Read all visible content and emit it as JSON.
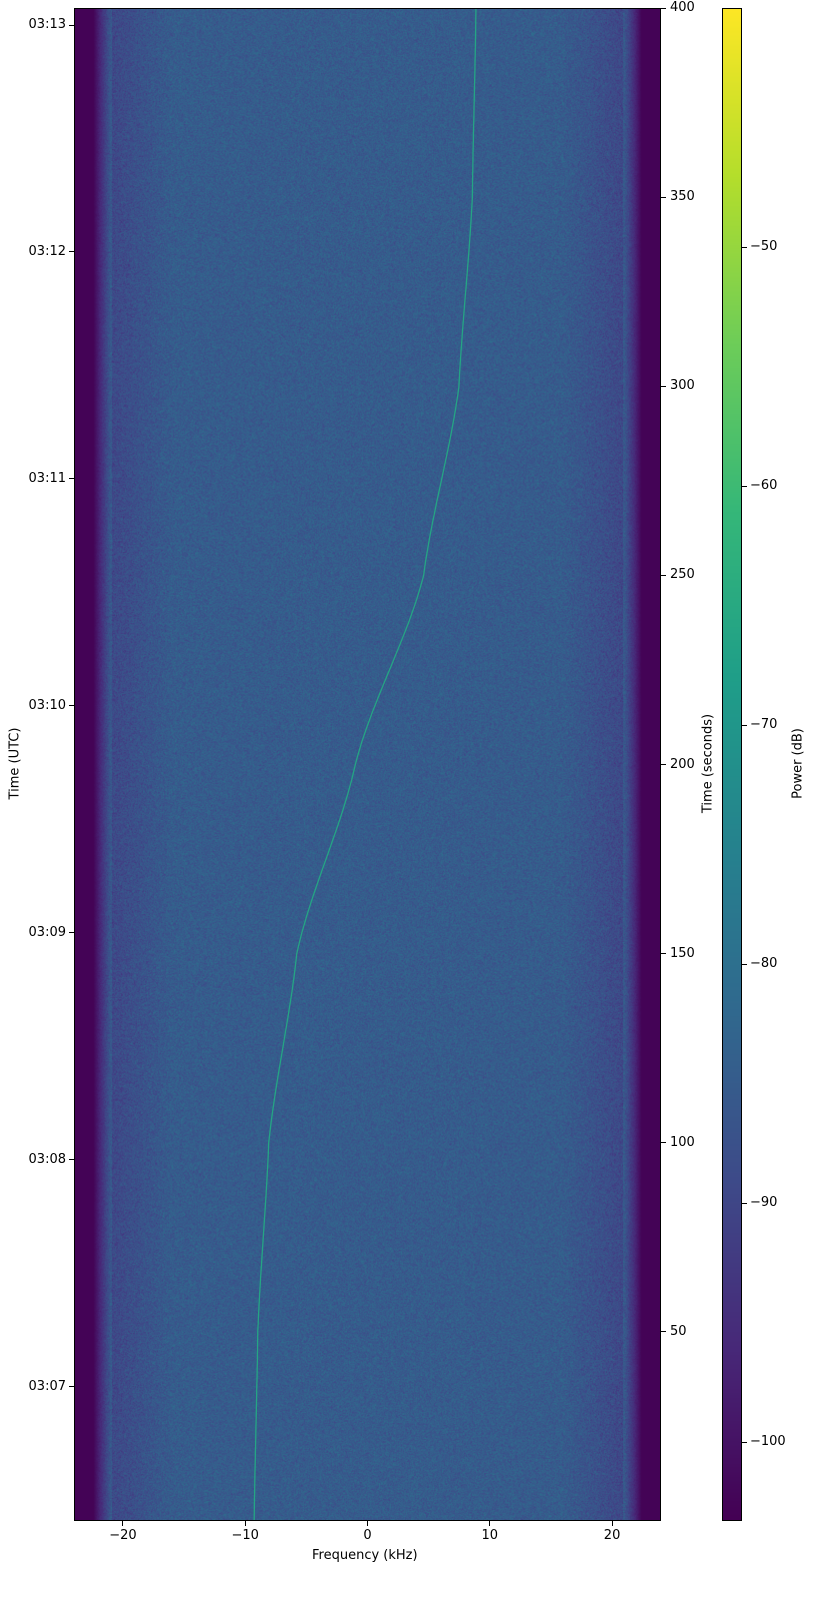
{
  "chart_data": {
    "type": "heatmap",
    "title": "",
    "xlabel": "Frequency (kHz)",
    "ylabel_left": "Time (UTC)",
    "ylabel_right": "Time (seconds)",
    "colorbar_label": "Power (dB)",
    "colormap": "viridis",
    "xlim": [
      -24,
      24
    ],
    "ylim_seconds": [
      0,
      400
    ],
    "clim": [
      -103.3,
      -40
    ],
    "x_ticks": [
      {
        "v": -20,
        "label": "−20"
      },
      {
        "v": -10,
        "label": "−10"
      },
      {
        "v": 0,
        "label": "0"
      },
      {
        "v": 10,
        "label": "10"
      },
      {
        "v": 20,
        "label": "20"
      }
    ],
    "y_right_ticks": [
      {
        "v": 50,
        "label": "50"
      },
      {
        "v": 100,
        "label": "100"
      },
      {
        "v": 150,
        "label": "150"
      },
      {
        "v": 200,
        "label": "200"
      },
      {
        "v": 250,
        "label": "250"
      },
      {
        "v": 300,
        "label": "300"
      },
      {
        "v": 350,
        "label": "350"
      },
      {
        "v": 400,
        "label": "400"
      }
    ],
    "y_left_ticks": [
      {
        "v": 35.5,
        "label": "03:07"
      },
      {
        "v": 95.5,
        "label": "03:08"
      },
      {
        "v": 155.5,
        "label": "03:09"
      },
      {
        "v": 215.5,
        "label": "03:10"
      },
      {
        "v": 275.5,
        "label": "03:11"
      },
      {
        "v": 335.5,
        "label": "03:12"
      },
      {
        "v": 395.5,
        "label": "03:13"
      }
    ],
    "colorbar_ticks": [
      {
        "v": -50,
        "label": "−50"
      },
      {
        "v": -60,
        "label": "−60"
      },
      {
        "v": -70,
        "label": "−70"
      },
      {
        "v": -80,
        "label": "−80"
      },
      {
        "v": -90,
        "label": "−90"
      },
      {
        "v": -100,
        "label": "−100"
      }
    ],
    "noise_floor_db": -85,
    "band_edge_db": -103,
    "passband_khz": [
      -21,
      21
    ],
    "signal_track": {
      "time_s": [
        0,
        50,
        100,
        150,
        200,
        250,
        300,
        350,
        400
      ],
      "freq_khz": [
        -9.3,
        -9.0,
        -8.1,
        -5.8,
        -1.0,
        4.6,
        7.5,
        8.6,
        8.9
      ],
      "power_db": -66
    }
  }
}
